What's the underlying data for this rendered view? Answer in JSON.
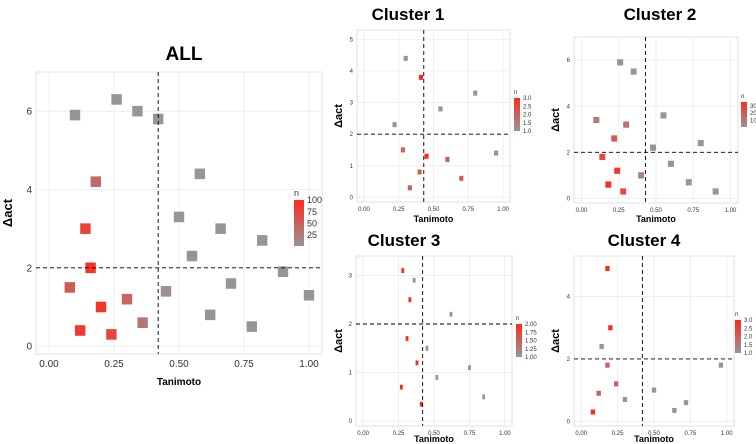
{
  "figure": {
    "colors": {
      "low": "#969696",
      "high": "#ff2a1f",
      "grid": "#ebebeb",
      "ref": "#000000"
    }
  },
  "chart_data": [
    {
      "id": "all",
      "type": "heatmap",
      "title": "ALL",
      "xlabel": "Tanimoto",
      "ylabel": "Δact",
      "xlim": [
        -0.05,
        1.05
      ],
      "ylim": [
        -0.2,
        7.0
      ],
      "xticks": [
        0,
        0.25,
        0.5,
        0.75,
        1.0
      ],
      "xtick_labels": [
        "0.00",
        "0.25",
        "0.50",
        "0.75",
        "1.00"
      ],
      "yticks": [
        0,
        2,
        4,
        6
      ],
      "ytick_labels": [
        "0",
        "2",
        "4",
        "6"
      ],
      "ref_x": 0.42,
      "ref_y": 2.0,
      "legend_title": "n",
      "legend_range": [
        1,
        100
      ],
      "legend_ticks": [
        25,
        50,
        75,
        100
      ],
      "legend_labels": [
        "25",
        "50",
        "75",
        "100"
      ],
      "bin_width": 0.04,
      "bin_height": 0.27,
      "bins": [
        {
          "x": 0.16,
          "y": 2.0,
          "n": 95
        },
        {
          "x": 0.14,
          "y": 3.0,
          "n": 80
        },
        {
          "x": 0.2,
          "y": 1.0,
          "n": 90
        },
        {
          "x": 0.12,
          "y": 0.4,
          "n": 85
        },
        {
          "x": 0.24,
          "y": 0.3,
          "n": 75
        },
        {
          "x": 0.08,
          "y": 1.5,
          "n": 55
        },
        {
          "x": 0.3,
          "y": 1.2,
          "n": 45
        },
        {
          "x": 0.36,
          "y": 0.6,
          "n": 30
        },
        {
          "x": 0.18,
          "y": 4.2,
          "n": 40
        },
        {
          "x": 0.45,
          "y": 1.4,
          "n": 6
        },
        {
          "x": 0.55,
          "y": 2.3,
          "n": 3
        },
        {
          "x": 0.62,
          "y": 0.8,
          "n": 4
        },
        {
          "x": 0.7,
          "y": 1.6,
          "n": 2
        },
        {
          "x": 0.78,
          "y": 0.5,
          "n": 2
        },
        {
          "x": 0.9,
          "y": 1.9,
          "n": 1
        },
        {
          "x": 1.0,
          "y": 1.3,
          "n": 1
        },
        {
          "x": 0.5,
          "y": 3.3,
          "n": 2
        },
        {
          "x": 0.58,
          "y": 4.4,
          "n": 1
        },
        {
          "x": 0.66,
          "y": 3.0,
          "n": 1
        },
        {
          "x": 0.82,
          "y": 2.7,
          "n": 1
        },
        {
          "x": 0.42,
          "y": 5.8,
          "n": 1
        },
        {
          "x": 0.26,
          "y": 6.3,
          "n": 1
        },
        {
          "x": 0.34,
          "y": 6.0,
          "n": 1
        },
        {
          "x": 0.1,
          "y": 5.9,
          "n": 2
        }
      ]
    },
    {
      "id": "c1",
      "type": "heatmap",
      "title": "Cluster 1",
      "xlabel": "Tanimoto",
      "ylabel": "Δact",
      "xlim": [
        -0.05,
        1.05
      ],
      "ylim": [
        -0.15,
        5.3
      ],
      "xticks": [
        0,
        0.25,
        0.5,
        0.75,
        1.0
      ],
      "xtick_labels": [
        "0.00",
        "0.25",
        "0.50",
        "0.75",
        "1.00"
      ],
      "yticks": [
        0,
        1,
        2,
        3,
        4,
        5
      ],
      "ytick_labels": [
        "0",
        "1",
        "2",
        "3",
        "4",
        "5"
      ],
      "ref_x": 0.43,
      "ref_y": 2.0,
      "legend_title": "n",
      "legend_range": [
        1,
        3
      ],
      "legend_ticks": [
        1.0,
        1.5,
        2.0,
        2.5,
        3.0
      ],
      "legend_labels": [
        "1.0",
        "1.5",
        "2.0",
        "2.5",
        "3.0"
      ],
      "bin_width": 0.03,
      "bin_height": 0.16,
      "bins": [
        {
          "x": 0.28,
          "y": 1.5,
          "n": 2
        },
        {
          "x": 0.4,
          "y": 0.8,
          "n": 2
        },
        {
          "x": 0.45,
          "y": 1.3,
          "n": 3
        },
        {
          "x": 0.33,
          "y": 0.3,
          "n": 2
        },
        {
          "x": 0.41,
          "y": 3.8,
          "n": 3
        },
        {
          "x": 0.6,
          "y": 1.2,
          "n": 2
        },
        {
          "x": 0.22,
          "y": 2.3,
          "n": 1
        },
        {
          "x": 0.55,
          "y": 2.8,
          "n": 1
        },
        {
          "x": 0.7,
          "y": 0.6,
          "n": 2
        },
        {
          "x": 0.8,
          "y": 3.3,
          "n": 1
        },
        {
          "x": 0.3,
          "y": 4.4,
          "n": 1
        },
        {
          "x": 0.95,
          "y": 1.4,
          "n": 1
        }
      ]
    },
    {
      "id": "c2",
      "type": "heatmap",
      "title": "Cluster 2",
      "xlabel": "Tanimoto",
      "ylabel": "Δact",
      "xlim": [
        -0.05,
        1.05
      ],
      "ylim": [
        -0.2,
        7.0
      ],
      "xticks": [
        0,
        0.25,
        0.5,
        0.75,
        1.0
      ],
      "xtick_labels": [
        "0.00",
        "0.25",
        "0.50",
        "0.75",
        "1.00"
      ],
      "yticks": [
        0,
        2,
        4,
        6
      ],
      "ytick_labels": [
        "0",
        "2",
        "4",
        "6"
      ],
      "ref_x": 0.43,
      "ref_y": 2.0,
      "legend_title": "n",
      "legend_range": [
        1,
        35
      ],
      "legend_ticks": [
        10,
        20,
        30
      ],
      "legend_labels": [
        "10",
        "20",
        "30"
      ],
      "bin_width": 0.04,
      "bin_height": 0.27,
      "bins": [
        {
          "x": 0.18,
          "y": 0.6,
          "n": 34
        },
        {
          "x": 0.24,
          "y": 1.2,
          "n": 30
        },
        {
          "x": 0.14,
          "y": 1.8,
          "n": 25
        },
        {
          "x": 0.22,
          "y": 2.6,
          "n": 20
        },
        {
          "x": 0.28,
          "y": 0.3,
          "n": 26
        },
        {
          "x": 0.3,
          "y": 3.2,
          "n": 12
        },
        {
          "x": 0.1,
          "y": 3.4,
          "n": 10
        },
        {
          "x": 0.4,
          "y": 1.0,
          "n": 8
        },
        {
          "x": 0.48,
          "y": 2.2,
          "n": 3
        },
        {
          "x": 0.6,
          "y": 1.5,
          "n": 2
        },
        {
          "x": 0.72,
          "y": 0.7,
          "n": 1
        },
        {
          "x": 0.8,
          "y": 2.4,
          "n": 1
        },
        {
          "x": 0.9,
          "y": 0.3,
          "n": 1
        },
        {
          "x": 0.55,
          "y": 3.6,
          "n": 1
        },
        {
          "x": 0.35,
          "y": 5.5,
          "n": 2
        },
        {
          "x": 0.26,
          "y": 5.9,
          "n": 1
        }
      ]
    },
    {
      "id": "c3",
      "type": "heatmap",
      "title": "Cluster 3",
      "xlabel": "Tanimoto",
      "ylabel": "Δact",
      "xlim": [
        -0.05,
        1.05
      ],
      "ylim": [
        -0.1,
        3.4
      ],
      "xticks": [
        0,
        0.25,
        0.5,
        0.75,
        1.0
      ],
      "xtick_labels": [
        "0.00",
        "0.25",
        "0.50",
        "0.75",
        "1.00"
      ],
      "yticks": [
        0,
        1,
        2,
        3
      ],
      "ytick_labels": [
        "0",
        "1",
        "2",
        "3"
      ],
      "ref_x": 0.42,
      "ref_y": 2.0,
      "legend_title": "n",
      "legend_range": [
        1,
        2
      ],
      "legend_ticks": [
        1.0,
        1.25,
        1.5,
        1.75,
        2.0
      ],
      "legend_labels": [
        "1.00",
        "1.25",
        "1.50",
        "1.75",
        "2.00"
      ],
      "bin_width": 0.02,
      "bin_height": 0.1,
      "bins": [
        {
          "x": 0.28,
          "y": 3.1,
          "n": 2
        },
        {
          "x": 0.33,
          "y": 2.5,
          "n": 2
        },
        {
          "x": 0.31,
          "y": 1.7,
          "n": 2
        },
        {
          "x": 0.38,
          "y": 1.2,
          "n": 2
        },
        {
          "x": 0.27,
          "y": 0.7,
          "n": 2
        },
        {
          "x": 0.41,
          "y": 0.35,
          "n": 2
        },
        {
          "x": 0.36,
          "y": 2.9,
          "n": 1
        },
        {
          "x": 0.45,
          "y": 1.5,
          "n": 1
        },
        {
          "x": 0.52,
          "y": 0.9,
          "n": 1
        },
        {
          "x": 0.62,
          "y": 2.2,
          "n": 1
        },
        {
          "x": 0.75,
          "y": 1.1,
          "n": 1
        },
        {
          "x": 0.85,
          "y": 0.5,
          "n": 1
        }
      ]
    },
    {
      "id": "c4",
      "type": "heatmap",
      "title": "Cluster 4",
      "xlabel": "Tanimoto",
      "ylabel": "Δact",
      "xlim": [
        -0.05,
        1.05
      ],
      "ylim": [
        -0.15,
        5.3
      ],
      "xticks": [
        0,
        0.25,
        0.5,
        0.75,
        1.0
      ],
      "xtick_labels": [
        "0.00",
        "0.25",
        "0.50",
        "0.75",
        "1.00"
      ],
      "yticks": [
        0,
        2,
        4
      ],
      "ytick_labels": [
        "0",
        "2",
        "4"
      ],
      "ref_x": 0.42,
      "ref_y": 2.0,
      "legend_title": "n",
      "legend_range": [
        1,
        3
      ],
      "legend_ticks": [
        1.0,
        1.5,
        2.0,
        2.5,
        3.0
      ],
      "legend_labels": [
        "1.0",
        "1.5",
        "2.0",
        "2.5",
        "3.0"
      ],
      "bin_width": 0.03,
      "bin_height": 0.16,
      "bins": [
        {
          "x": 0.18,
          "y": 4.9,
          "n": 3
        },
        {
          "x": 0.2,
          "y": 3.0,
          "n": 3
        },
        {
          "x": 0.18,
          "y": 1.8,
          "n": 2
        },
        {
          "x": 0.12,
          "y": 0.9,
          "n": 2
        },
        {
          "x": 0.08,
          "y": 0.3,
          "n": 3
        },
        {
          "x": 0.24,
          "y": 1.2,
          "n": 2
        },
        {
          "x": 0.14,
          "y": 2.4,
          "n": 1
        },
        {
          "x": 0.3,
          "y": 0.7,
          "n": 1
        },
        {
          "x": 0.5,
          "y": 1.0,
          "n": 1
        },
        {
          "x": 0.64,
          "y": 0.35,
          "n": 1
        },
        {
          "x": 0.72,
          "y": 0.6,
          "n": 1
        },
        {
          "x": 0.96,
          "y": 1.8,
          "n": 1
        }
      ]
    }
  ]
}
